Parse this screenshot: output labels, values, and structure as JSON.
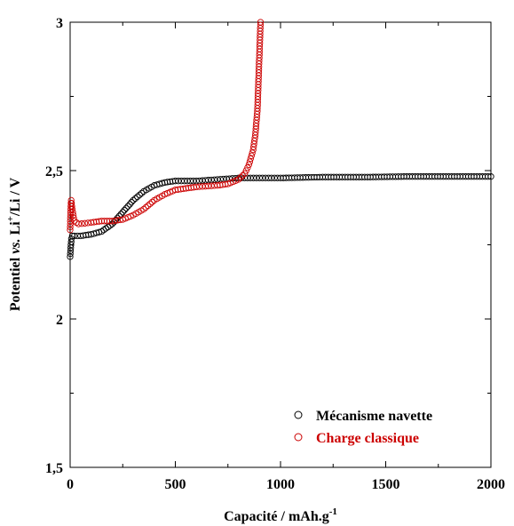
{
  "chart_data": {
    "type": "scatter",
    "xlabel": "Capacité / mAh.g",
    "xlabel_sup": "-1",
    "ylabel_parts": {
      "a": "Potentiel ",
      "b": "vs.",
      "c": " Li",
      "c_sup": "+",
      "d": "/Li / V"
    },
    "xlim": [
      0,
      2000
    ],
    "ylim": [
      1.5,
      3
    ],
    "x_ticks": [
      0,
      500,
      1000,
      1500,
      2000
    ],
    "x_tick_labels": [
      "0",
      "500",
      "1000",
      "1500",
      "2000"
    ],
    "y_ticks": [
      1.5,
      2,
      2.5,
      3
    ],
    "y_tick_labels": [
      "1,5",
      "2",
      "2,5",
      "3"
    ],
    "legend_position": "bottom-right",
    "grid": false,
    "series": [
      {
        "name": "Mécanisme navette",
        "color": "#000000",
        "marker": "open-circle",
        "points": [
          [
            0,
            2.21
          ],
          [
            2,
            2.23
          ],
          [
            4,
            2.25
          ],
          [
            6,
            2.27
          ],
          [
            10,
            2.28
          ],
          [
            20,
            2.28
          ],
          [
            50,
            2.28
          ],
          [
            100,
            2.285
          ],
          [
            150,
            2.295
          ],
          [
            200,
            2.32
          ],
          [
            250,
            2.36
          ],
          [
            300,
            2.4
          ],
          [
            350,
            2.43
          ],
          [
            400,
            2.45
          ],
          [
            450,
            2.46
          ],
          [
            500,
            2.465
          ],
          [
            600,
            2.465
          ],
          [
            700,
            2.47
          ],
          [
            800,
            2.475
          ],
          [
            900,
            2.475
          ],
          [
            1000,
            2.475
          ],
          [
            1200,
            2.478
          ],
          [
            1400,
            2.478
          ],
          [
            1600,
            2.48
          ],
          [
            1800,
            2.48
          ],
          [
            2000,
            2.48
          ]
        ]
      },
      {
        "name": "Charge classique",
        "color": "#cc0000",
        "marker": "open-circle",
        "points": [
          [
            0,
            2.3
          ],
          [
            2,
            2.36
          ],
          [
            5,
            2.4
          ],
          [
            10,
            2.37
          ],
          [
            20,
            2.33
          ],
          [
            40,
            2.32
          ],
          [
            100,
            2.325
          ],
          [
            150,
            2.33
          ],
          [
            200,
            2.33
          ],
          [
            250,
            2.335
          ],
          [
            300,
            2.35
          ],
          [
            350,
            2.37
          ],
          [
            400,
            2.4
          ],
          [
            450,
            2.42
          ],
          [
            500,
            2.435
          ],
          [
            550,
            2.44
          ],
          [
            600,
            2.445
          ],
          [
            700,
            2.45
          ],
          [
            750,
            2.455
          ],
          [
            800,
            2.47
          ],
          [
            830,
            2.49
          ],
          [
            850,
            2.52
          ],
          [
            870,
            2.57
          ],
          [
            880,
            2.62
          ],
          [
            890,
            2.7
          ],
          [
            895,
            2.8
          ],
          [
            900,
            2.9
          ],
          [
            905,
            3.0
          ]
        ]
      }
    ]
  }
}
